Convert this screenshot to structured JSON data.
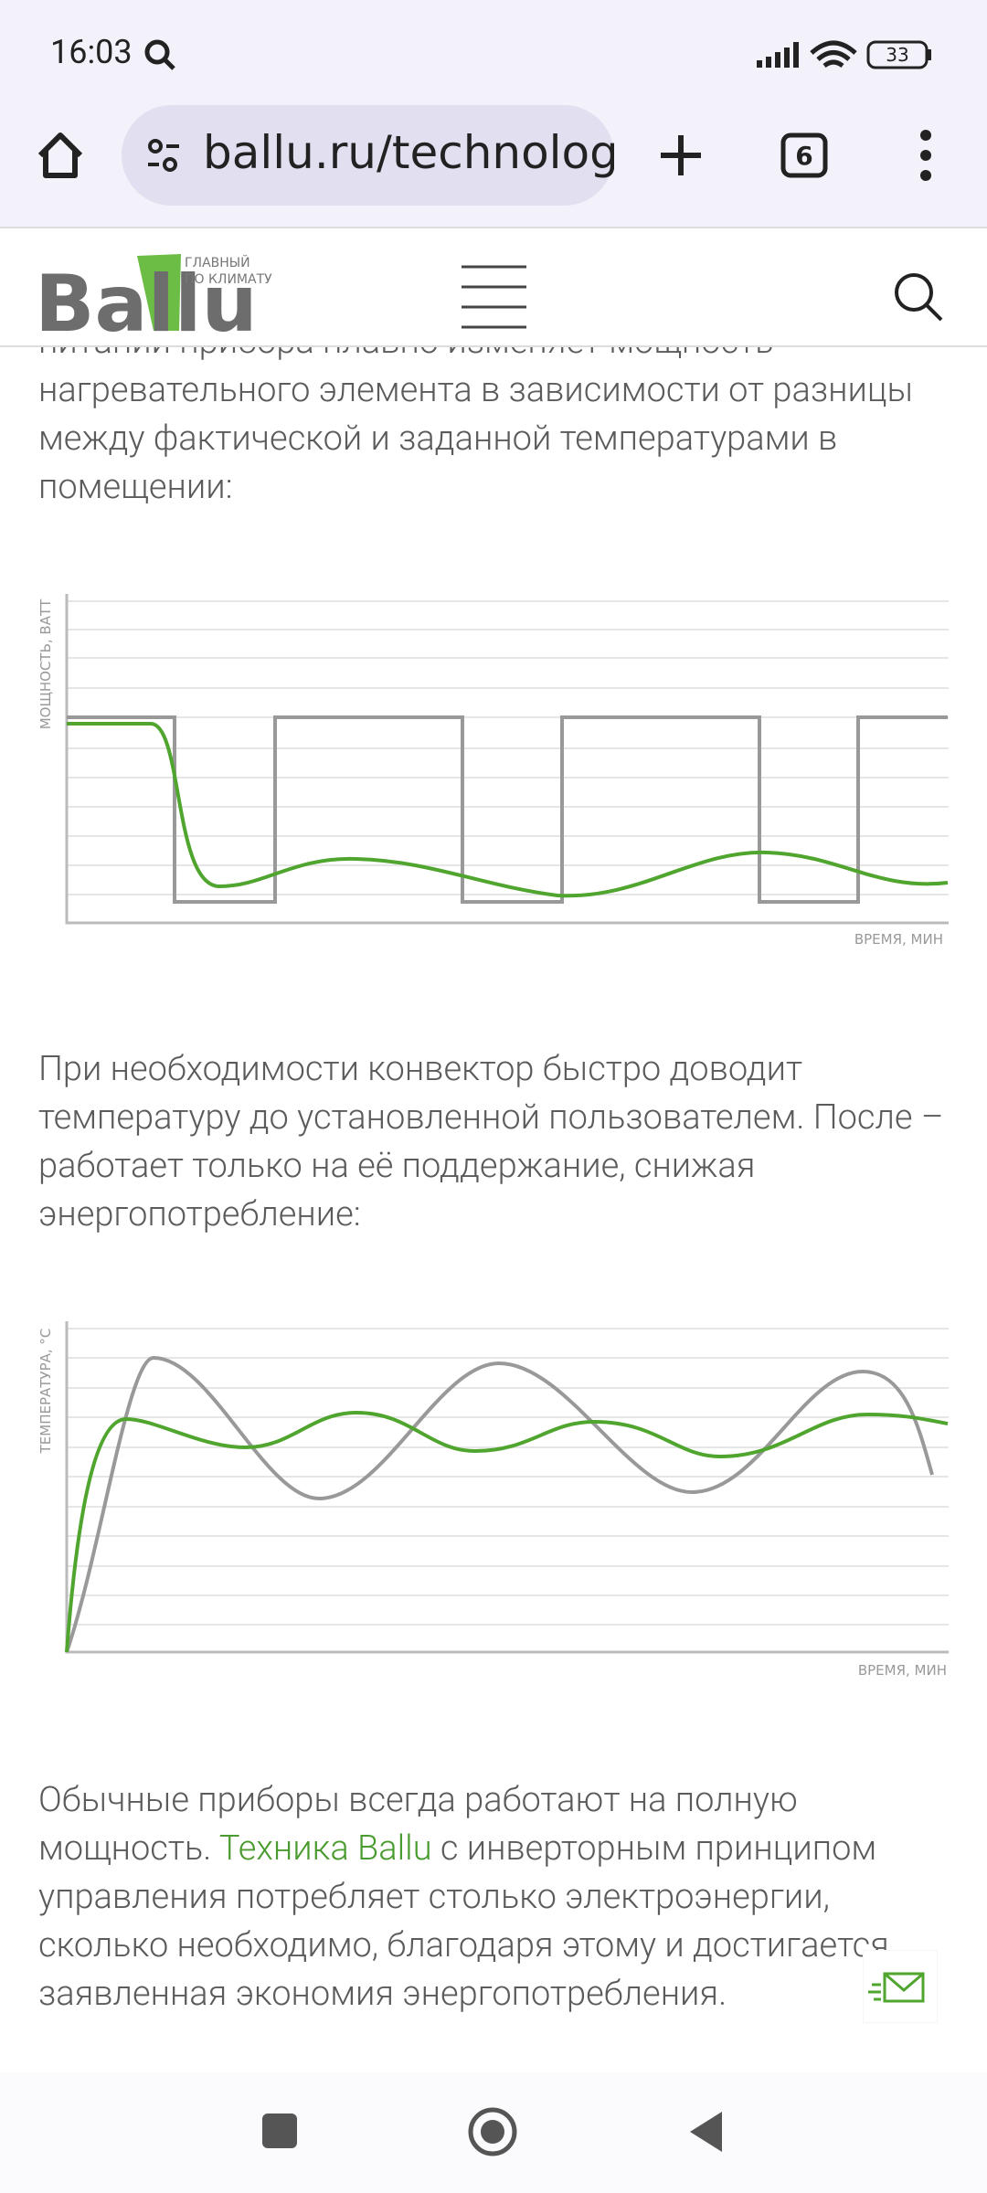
{
  "status_bar": {
    "time": "16:03",
    "battery": "33"
  },
  "browser": {
    "url": "ballu.ru/technolog",
    "tabs": "6"
  },
  "site_header": {
    "logo": "Ballu",
    "tagline": [
      "ГЛАВНЫЙ",
      "ПО КЛИМАТУ"
    ]
  },
  "content": {
    "paragraph_1": "питании прибора плавно изменяет мощность нагревательного элемента в зависимости от разницы между фактической и заданной температурами в помещении:",
    "chart_1": {
      "y_label": "МОЩНОСТЬ, ВАТТ",
      "x_label": "ВРЕМЯ, МИН"
    },
    "paragraph_2": "При необходимости конвектор быстро доводит температуру до установленной пользователем. После – работает только на её поддержание, снижая энергопотребление:",
    "chart_2": {
      "y_label": "ТЕМПЕРАТУРА, °С",
      "x_label": "ВРЕМЯ, МИН"
    },
    "paragraph_3": {
      "before": "Обычные приборы всегда работают на полную мощность. ",
      "link": "Техника Ballu",
      "after": " с инверторным принципом управления потребляет столько электроэнергии, сколько необходимо, благодаря этому и достигается заявленная экономия энергопотребления."
    }
  }
}
